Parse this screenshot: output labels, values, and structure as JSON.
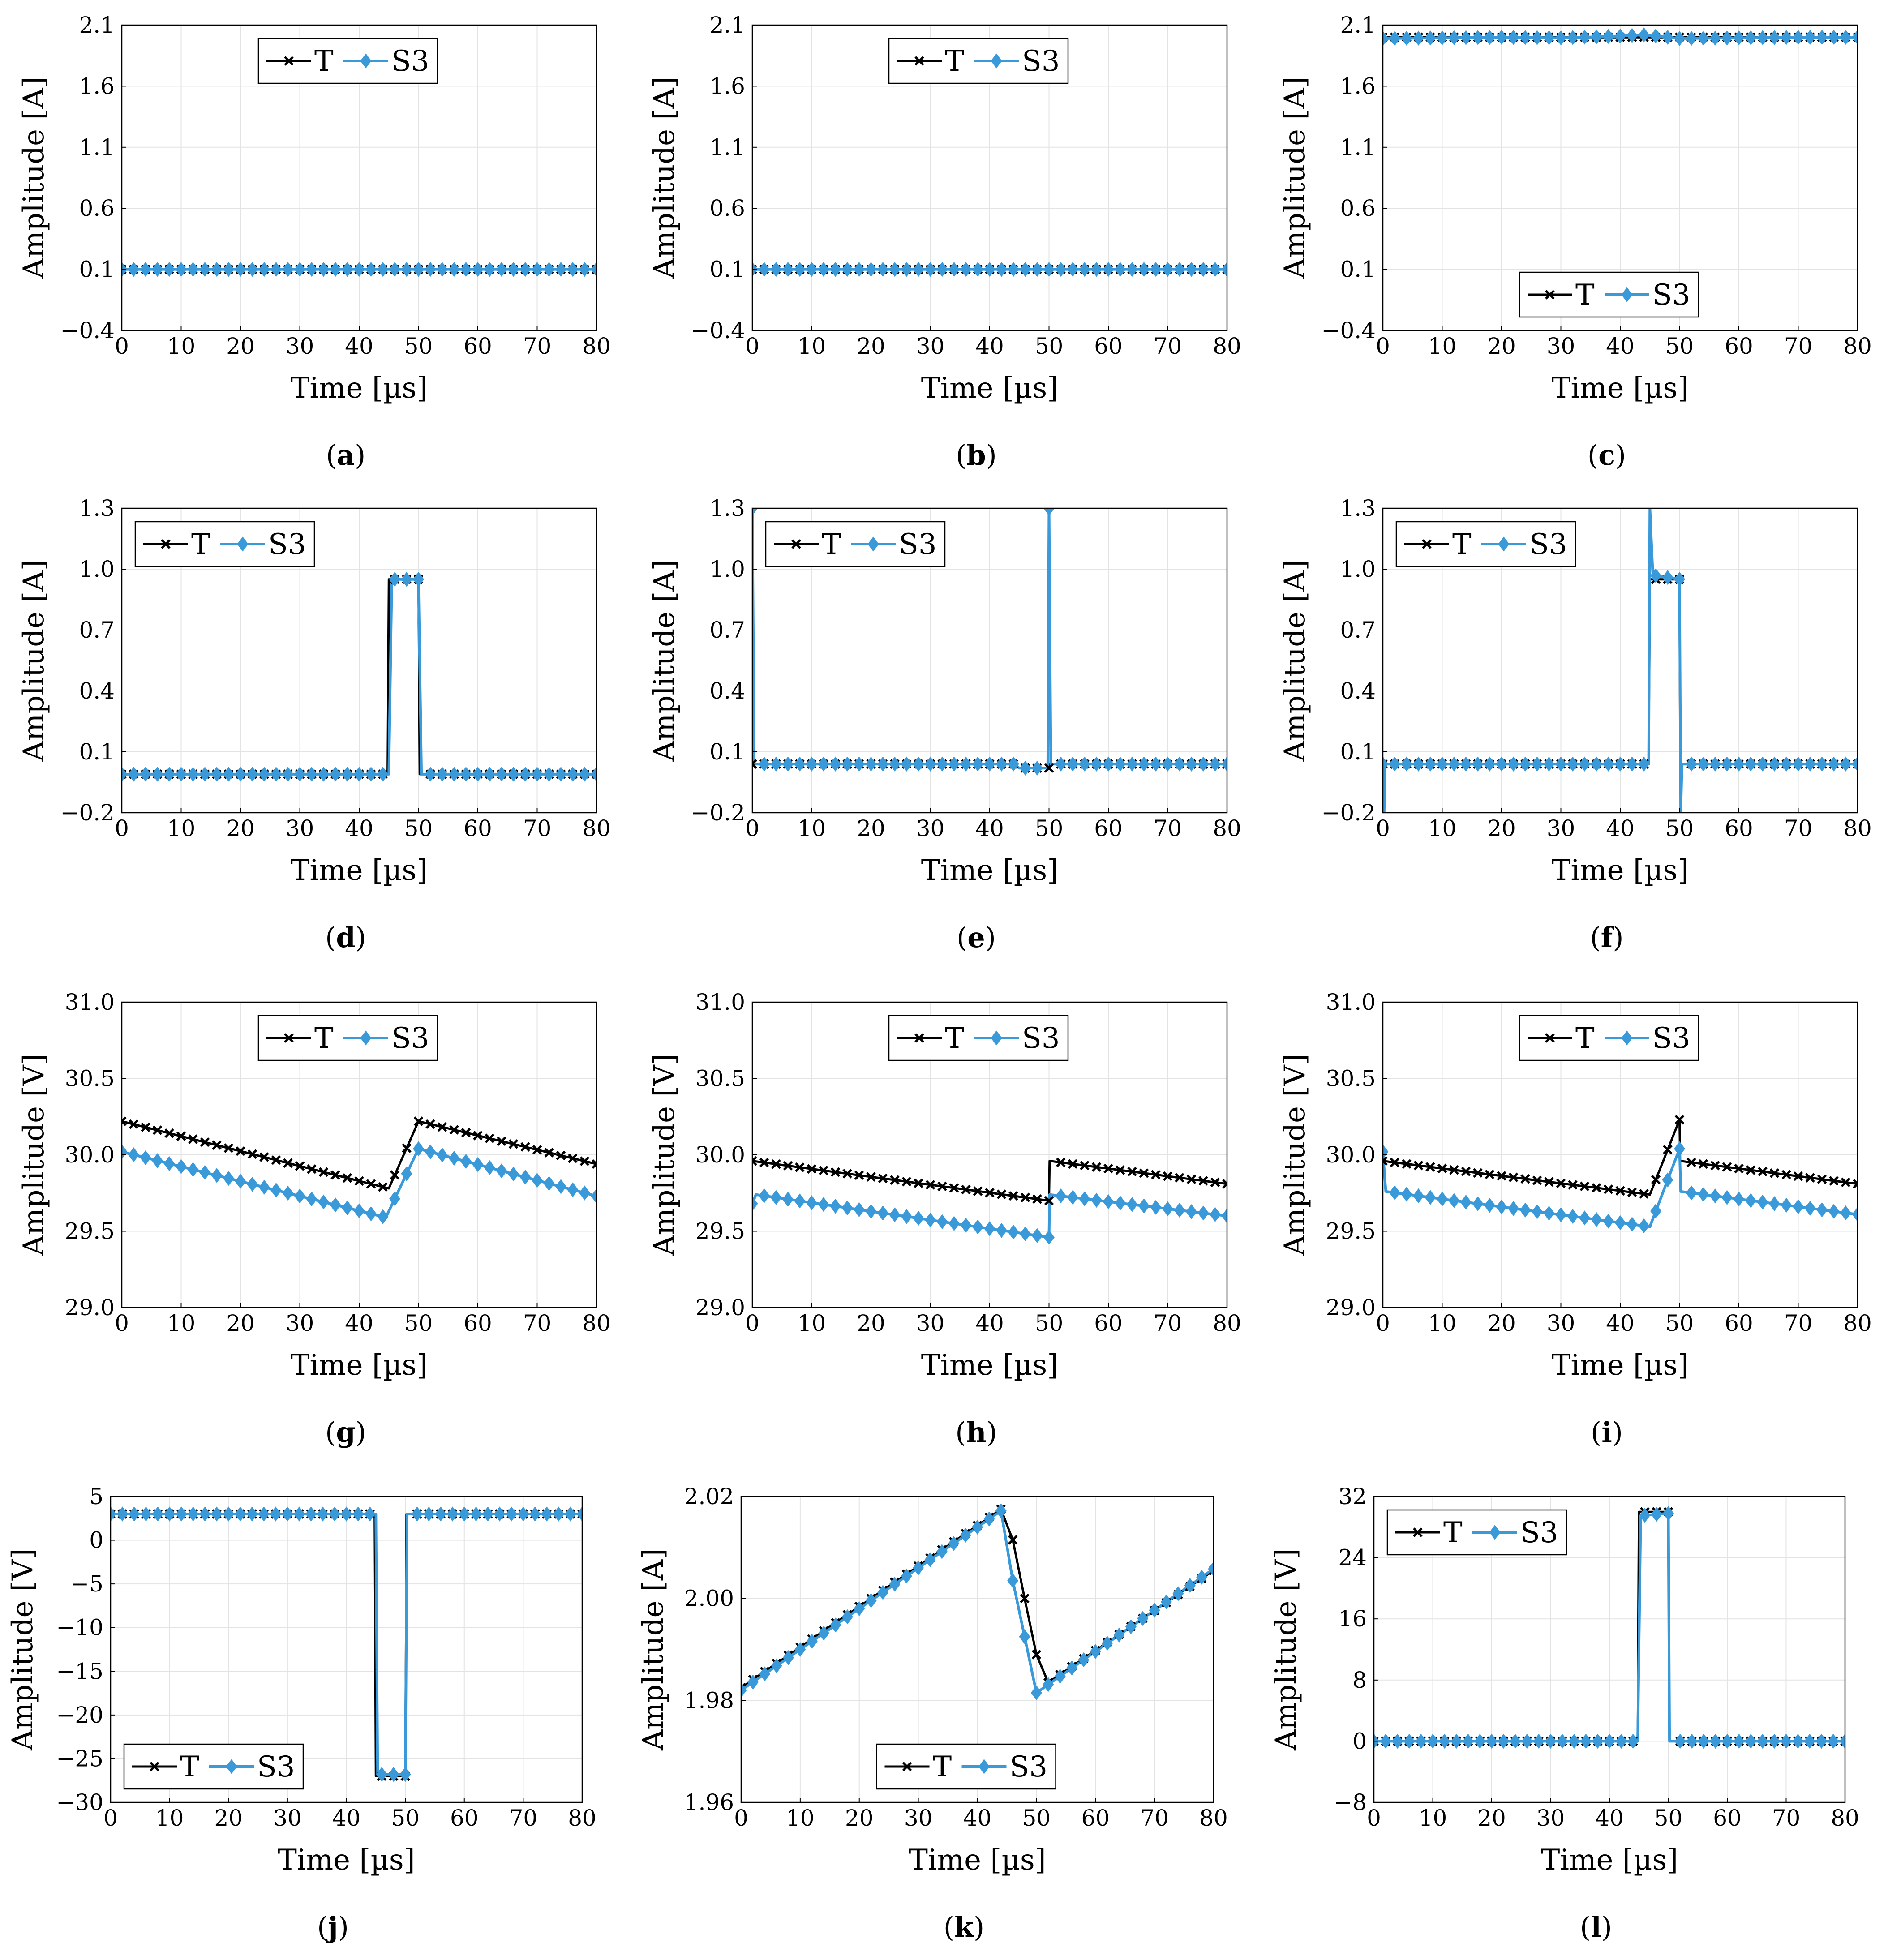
{
  "figure": {
    "legend_names": [
      "T",
      "S3"
    ],
    "colors": {
      "T": "#000000",
      "S3": "#3a9ad9",
      "grid": "#e3e3e3"
    }
  },
  "chart_data": [
    {
      "id": "a",
      "type": "line",
      "caption": "a",
      "xlabel": "Time [µs]",
      "ylabel": "Amplitude [A]",
      "xlim": [
        0,
        80
      ],
      "ylim": [
        -0.4,
        2.1
      ],
      "xticks": [
        0,
        10,
        20,
        30,
        40,
        50,
        60,
        70,
        80
      ],
      "yticks": [
        "−0.4",
        "0.1",
        "0.6",
        "1.1",
        "1.6",
        "2.1"
      ],
      "legend": "top-center",
      "series": [
        {
          "name": "T",
          "points": [
            [
              0,
              0.1
            ],
            [
              80,
              0.1
            ]
          ]
        },
        {
          "name": "S3",
          "points": [
            [
              0,
              0.1
            ],
            [
              80,
              0.1
            ]
          ]
        }
      ]
    },
    {
      "id": "b",
      "type": "line",
      "caption": "b",
      "xlabel": "Time [µs]",
      "ylabel": "Amplitude [A]",
      "xlim": [
        0,
        80
      ],
      "ylim": [
        -0.4,
        2.1
      ],
      "xticks": [
        0,
        10,
        20,
        30,
        40,
        50,
        60,
        70,
        80
      ],
      "yticks": [
        "−0.4",
        "0.1",
        "0.6",
        "1.1",
        "1.6",
        "2.1"
      ],
      "legend": "top-center",
      "series": [
        {
          "name": "T",
          "points": [
            [
              0,
              0.1
            ],
            [
              80,
              0.1
            ]
          ]
        },
        {
          "name": "S3",
          "points": [
            [
              0,
              0.1
            ],
            [
              80,
              0.1
            ]
          ]
        }
      ]
    },
    {
      "id": "c",
      "type": "line",
      "caption": "c",
      "xlabel": "Time [µs]",
      "ylabel": "Amplitude [A]",
      "xlim": [
        0,
        80
      ],
      "ylim": [
        -0.4,
        2.1
      ],
      "xticks": [
        0,
        10,
        20,
        30,
        40,
        50,
        60,
        70,
        80
      ],
      "yticks": [
        "−0.4",
        "0.1",
        "0.6",
        "1.1",
        "1.6",
        "2.1"
      ],
      "legend": "bottom-center",
      "series": [
        {
          "name": "T",
          "points": [
            [
              0,
              2.0
            ],
            [
              80,
              2.0
            ]
          ]
        },
        {
          "name": "S3",
          "points": [
            [
              0,
              1.99
            ],
            [
              10,
              1.995
            ],
            [
              20,
              2.0
            ],
            [
              30,
              1.995
            ],
            [
              40,
              2.01
            ],
            [
              44,
              2.02
            ],
            [
              50,
              1.99
            ],
            [
              60,
              1.995
            ],
            [
              70,
              2.0
            ],
            [
              80,
              2.0
            ]
          ]
        }
      ]
    },
    {
      "id": "d",
      "type": "line",
      "caption": "d",
      "xlabel": "Time [µs]",
      "ylabel": "Amplitude [A]",
      "xlim": [
        0,
        80
      ],
      "ylim": [
        -0.2,
        1.3
      ],
      "xticks": [
        0,
        10,
        20,
        30,
        40,
        50,
        60,
        70,
        80
      ],
      "yticks": [
        "−0.2",
        "0.1",
        "0.4",
        "0.7",
        "1.0",
        "1.3"
      ],
      "legend": "top-left",
      "series": [
        {
          "name": "T",
          "points": [
            [
              0,
              -0.01
            ],
            [
              44.8,
              -0.01
            ],
            [
              45,
              0.95
            ],
            [
              50,
              0.95
            ],
            [
              50.2,
              -0.01
            ],
            [
              80,
              -0.01
            ]
          ]
        },
        {
          "name": "S3",
          "points": [
            [
              0,
              -0.01
            ],
            [
              45,
              -0.01
            ],
            [
              45.5,
              0.95
            ],
            [
              50,
              0.95
            ],
            [
              50.5,
              -0.01
            ],
            [
              80,
              -0.01
            ]
          ]
        }
      ]
    },
    {
      "id": "e",
      "type": "line",
      "caption": "e",
      "xlabel": "Time [µs]",
      "ylabel": "Amplitude [A]",
      "xlim": [
        0,
        80
      ],
      "ylim": [
        -0.2,
        1.3
      ],
      "xticks": [
        0,
        10,
        20,
        30,
        40,
        50,
        60,
        70,
        80
      ],
      "yticks": [
        "−0.2",
        "0.1",
        "0.4",
        "0.7",
        "1.0",
        "1.3"
      ],
      "legend": "top-left",
      "series": [
        {
          "name": "T",
          "points": [
            [
              0,
              0.04
            ],
            [
              44,
              0.04
            ],
            [
              45,
              0.02
            ],
            [
              50,
              0.02
            ],
            [
              50.1,
              0.04
            ],
            [
              80,
              0.04
            ]
          ]
        },
        {
          "name": "S3",
          "points": [
            [
              0,
              1.3
            ],
            [
              0.3,
              0.04
            ],
            [
              44,
              0.04
            ],
            [
              45,
              0.02
            ],
            [
              49.8,
              0.02
            ],
            [
              50,
              1.3
            ],
            [
              50.3,
              0.04
            ],
            [
              80,
              0.04
            ]
          ]
        }
      ]
    },
    {
      "id": "f",
      "type": "line",
      "caption": "f",
      "xlabel": "Time [µs]",
      "ylabel": "Amplitude [A]",
      "xlim": [
        0,
        80
      ],
      "ylim": [
        -0.2,
        1.3
      ],
      "xticks": [
        0,
        10,
        20,
        30,
        40,
        50,
        60,
        70,
        80
      ],
      "yticks": [
        "−0.2",
        "0.1",
        "0.4",
        "0.7",
        "1.0",
        "1.3"
      ],
      "legend": "top-left",
      "series": [
        {
          "name": "T",
          "points": [
            [
              0,
              0.04
            ],
            [
              44.8,
              0.04
            ],
            [
              45,
              0.95
            ],
            [
              50,
              0.95
            ],
            [
              50.1,
              0.04
            ],
            [
              80,
              0.04
            ]
          ]
        },
        {
          "name": "S3",
          "points": [
            [
              0,
              0.04
            ],
            [
              0.2,
              -0.2
            ],
            [
              0.4,
              0.04
            ],
            [
              44.8,
              0.04
            ],
            [
              45,
              1.3
            ],
            [
              45.5,
              0.97
            ],
            [
              50,
              0.95
            ],
            [
              50.2,
              -0.2
            ],
            [
              50.4,
              0.04
            ],
            [
              80,
              0.04
            ]
          ]
        }
      ]
    },
    {
      "id": "g",
      "type": "line",
      "caption": "g",
      "xlabel": "Time [µs]",
      "ylabel": "Amplitude [V]",
      "xlim": [
        0,
        80
      ],
      "ylim": [
        29.0,
        31.0
      ],
      "xticks": [
        0,
        10,
        20,
        30,
        40,
        50,
        60,
        70,
        80
      ],
      "yticks": [
        "29.0",
        "29.5",
        "30.0",
        "30.5",
        "31.0"
      ],
      "legend": "top-center",
      "series": [
        {
          "name": "T",
          "points": [
            [
              0,
              30.22
            ],
            [
              45,
              29.78
            ],
            [
              50,
              30.22
            ],
            [
              80,
              29.94
            ]
          ]
        },
        {
          "name": "S3",
          "points": [
            [
              0,
              30.02
            ],
            [
              44.5,
              29.59
            ],
            [
              50,
              30.04
            ],
            [
              80,
              29.73
            ]
          ]
        }
      ]
    },
    {
      "id": "h",
      "type": "line",
      "caption": "h",
      "xlabel": "Time [µs]",
      "ylabel": "Amplitude [V]",
      "xlim": [
        0,
        80
      ],
      "ylim": [
        29.0,
        31.0
      ],
      "xticks": [
        0,
        10,
        20,
        30,
        40,
        50,
        60,
        70,
        80
      ],
      "yticks": [
        "29.0",
        "29.5",
        "30.0",
        "30.5",
        "31.0"
      ],
      "legend": "top-center",
      "series": [
        {
          "name": "T",
          "points": [
            [
              0,
              29.96
            ],
            [
              50,
              29.7
            ],
            [
              50.1,
              29.96
            ],
            [
              80,
              29.81
            ]
          ]
        },
        {
          "name": "S3",
          "points": [
            [
              0,
              29.68
            ],
            [
              0.6,
              29.74
            ],
            [
              50,
              29.46
            ],
            [
              50.1,
              29.74
            ],
            [
              80,
              29.6
            ]
          ]
        }
      ]
    },
    {
      "id": "i",
      "type": "line",
      "caption": "i",
      "xlabel": "Time [µs]",
      "ylabel": "Amplitude [V]",
      "xlim": [
        0,
        80
      ],
      "ylim": [
        29.0,
        31.0
      ],
      "xticks": [
        0,
        10,
        20,
        30,
        40,
        50,
        60,
        70,
        80
      ],
      "yticks": [
        "29.0",
        "29.5",
        "30.0",
        "30.5",
        "31.0"
      ],
      "legend": "top-center",
      "series": [
        {
          "name": "T",
          "points": [
            [
              0,
              29.96
            ],
            [
              45,
              29.74
            ],
            [
              50,
              30.23
            ],
            [
              50.1,
              29.96
            ],
            [
              80,
              29.81
            ]
          ]
        },
        {
          "name": "S3",
          "points": [
            [
              0,
              30.02
            ],
            [
              0.5,
              29.76
            ],
            [
              45,
              29.53
            ],
            [
              50,
              30.04
            ],
            [
              50.2,
              29.76
            ],
            [
              80,
              29.61
            ]
          ]
        }
      ]
    },
    {
      "id": "j",
      "type": "line",
      "caption": "j",
      "xlabel": "Time [µs]",
      "ylabel": "Amplitude [V]",
      "xlim": [
        0,
        80
      ],
      "ylim": [
        -30,
        5
      ],
      "xticks": [
        0,
        10,
        20,
        30,
        40,
        50,
        60,
        70,
        80
      ],
      "yticks": [
        "−30",
        "−25",
        "−20",
        "−15",
        "−10",
        "−5",
        "0",
        "5"
      ],
      "legend": "bottom-left",
      "series": [
        {
          "name": "T",
          "points": [
            [
              0,
              3
            ],
            [
              44.8,
              3
            ],
            [
              45,
              -27
            ],
            [
              50,
              -27
            ],
            [
              50.2,
              3
            ],
            [
              80,
              3
            ]
          ]
        },
        {
          "name": "S3",
          "points": [
            [
              0,
              3
            ],
            [
              45,
              3
            ],
            [
              45.3,
              -26.8
            ],
            [
              50,
              -26.8
            ],
            [
              50.3,
              3
            ],
            [
              80,
              3
            ]
          ]
        }
      ]
    },
    {
      "id": "k",
      "type": "line",
      "caption": "k",
      "xlabel": "Time [µs]",
      "ylabel": "Amplitude [A]",
      "xlim": [
        0,
        80
      ],
      "ylim": [
        1.96,
        2.02
      ],
      "xticks": [
        0,
        10,
        20,
        30,
        40,
        50,
        60,
        70,
        80
      ],
      "yticks": [
        "1.96",
        "1.98",
        "2.00",
        "2.02"
      ],
      "legend": "bottom-center",
      "series": [
        {
          "name": "T",
          "points": [
            [
              0,
              1.9825
            ],
            [
              44,
              2.0175
            ],
            [
              46,
              2.0115
            ],
            [
              48,
              2.0
            ],
            [
              50,
              1.989
            ],
            [
              52,
              1.9835
            ],
            [
              80,
              2.0055
            ]
          ]
        },
        {
          "name": "S3",
          "points": [
            [
              0,
              1.982
            ],
            [
              44,
              2.0172
            ],
            [
              46,
              2.0035
            ],
            [
              50,
              1.9815
            ],
            [
              80,
              2.0058
            ]
          ]
        }
      ]
    },
    {
      "id": "l",
      "type": "line",
      "caption": "l",
      "xlabel": "Time [µs]",
      "ylabel": "Amplitude [V]",
      "xlim": [
        0,
        80
      ],
      "ylim": [
        -8,
        32
      ],
      "xticks": [
        0,
        10,
        20,
        30,
        40,
        50,
        60,
        70,
        80
      ],
      "yticks": [
        "−8",
        "0",
        "8",
        "16",
        "24",
        "32"
      ],
      "legend": "top-left",
      "series": [
        {
          "name": "T",
          "points": [
            [
              0,
              0
            ],
            [
              44.8,
              0
            ],
            [
              45,
              30
            ],
            [
              50,
              30
            ],
            [
              50.2,
              0
            ],
            [
              80,
              0
            ]
          ]
        },
        {
          "name": "S3",
          "points": [
            [
              0,
              0
            ],
            [
              44.8,
              0
            ],
            [
              45.3,
              29.5
            ],
            [
              50,
              29.8
            ],
            [
              50.2,
              0
            ],
            [
              80,
              0
            ]
          ]
        }
      ]
    }
  ]
}
